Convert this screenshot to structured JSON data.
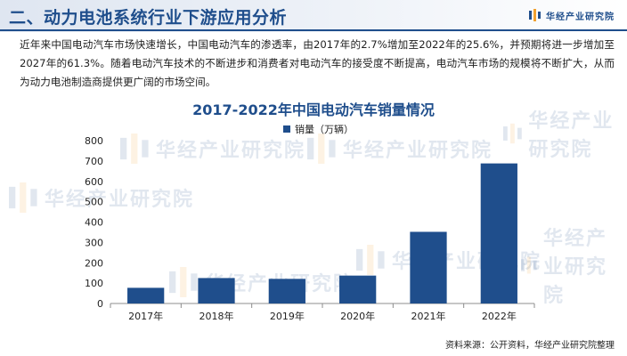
{
  "header": {
    "title": "二、动力电池系统行业下游应用分析",
    "brand": "华经产业研究院",
    "accent": "#1f4e8c"
  },
  "intro_text": "近年来中国电动汽车市场快速增长，中国电动汽车的渗透率，由2017年的2.7%增加至2022年的25.6%，并预期将进一步增加至2027年的61.3%。随着电动汽车技术的不断进步和消费者对电动汽车的接受度不断提高，电动汽车市场的规模将不断扩大，从而为动力电池制造商提供更广阔的市场空间。",
  "watermark_text": "华经产业研究院",
  "source": "资料来源：公开资料，华经产业研究院整理",
  "chart_data": {
    "type": "bar",
    "title": "2017-2022年中国电动汽车销量情况",
    "categories": [
      "2017年",
      "2018年",
      "2019年",
      "2020年",
      "2021年",
      "2022年"
    ],
    "series": [
      {
        "name": "销量（万辆）",
        "values": [
          77,
          125,
          121,
          137,
          352,
          688
        ],
        "color": "#1f4e8c"
      }
    ],
    "ylim": [
      0,
      800
    ],
    "yticks": [
      "0",
      "100",
      "200",
      "300",
      "400",
      "500",
      "600",
      "700",
      "800"
    ],
    "grid": false,
    "legend": "top-center"
  }
}
